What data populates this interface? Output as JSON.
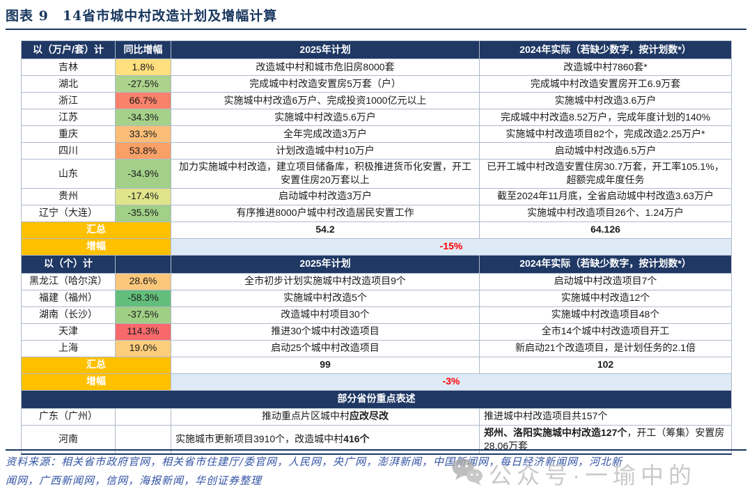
{
  "title": "图表 9　14省市城中村改造计划及增幅计算",
  "colors": {
    "header_navy": "#1F3864",
    "total_gold": "#FFC000",
    "growth_band_blue": "#DEEBF7",
    "growth_value_red": "#FF0000",
    "title_navy": "#17365D",
    "source_blue": "#3353A4"
  },
  "section1": {
    "header": [
      "以（万户/套）计",
      "同比增幅",
      "2025年计划",
      "2024年实际（若缺少数字，按计划数*）"
    ],
    "rows": [
      {
        "province": "吉林",
        "growth": "1.8%",
        "growth_color": "#FFDF7E",
        "plan2025": "改造城中村和城市危旧房8000套",
        "actual2024": "改造城中村7860套*"
      },
      {
        "province": "湖北",
        "growth": "-27.5%",
        "growth_color": "#ACD28C",
        "plan2025": "完成城中村改造安置房5万套（户）",
        "actual2024": "完成城中村改造安置房开工6.9万套"
      },
      {
        "province": "浙江",
        "growth": "66.7%",
        "growth_color": "#F8826A",
        "plan2025": "实施城中村改造6万户、完成投资1000亿元以上",
        "actual2024": "实施城中村改造3.6万户"
      },
      {
        "province": "江苏",
        "growth": "-34.3%",
        "growth_color": "#A5D18A",
        "plan2025": "实施城中村改造5.6万户",
        "actual2024": "完成城中村改造8.52万户，完成年度计划的140%"
      },
      {
        "province": "重庆",
        "growth": "33.3%",
        "growth_color": "#FBBD77",
        "plan2025": "全年完成改造3万户",
        "actual2024": "实施城中村改造项目82个，完成改造2.25万户*"
      },
      {
        "province": "四川",
        "growth": "53.8%",
        "growth_color": "#F9A066",
        "plan2025": "计划改造城中村10万户",
        "actual2024": "启动城中村改造6.5万户"
      },
      {
        "province": "山东",
        "growth": "-34.9%",
        "growth_color": "#A3D089",
        "plan2025": "加力实施城中村改造，建立项目储备库，积极推进货币化安置，开工安置住房20万套以上",
        "actual2024": "已开工城中村改造安置住房30.7万套，开工率105.1%，超额完成年度任务"
      },
      {
        "province": "贵州",
        "growth": "-17.4%",
        "growth_color": "#DFE48A",
        "plan2025": "启动城中村改造3万户",
        "actual2024": "截至2024年11月底，全省启动城中村改造3.63万户"
      },
      {
        "province": "辽宁（大连）",
        "growth": "-35.5%",
        "growth_color": "#A1D087",
        "plan2025": "有序推进8000户城中村改造居民安置工作",
        "actual2024": "实施城中村改造项目26个、1.24万户"
      }
    ],
    "total_label": "汇总",
    "total_plan": "54.2",
    "total_actual": "64.126",
    "growth_label": "增幅",
    "growth_value": "-15%"
  },
  "section2": {
    "header": [
      "以（个）计",
      "",
      "2025年计划",
      "2024年实际（若缺少数字，按计划数*）"
    ],
    "rows": [
      {
        "province": "黑龙江（哈尔滨）",
        "growth": "28.6%",
        "growth_color": "#FBC77B",
        "plan2025": "全市初步计划实施城中村改造项目9个",
        "actual2024": "启动城中村改造项目7个"
      },
      {
        "province": "福建（福州）",
        "growth": "-58.3%",
        "growth_color": "#63BE7B",
        "plan2025": "实施城中村改造5个",
        "actual2024": "实施城中村改造12个"
      },
      {
        "province": "湖南（长沙）",
        "growth": "-37.5%",
        "growth_color": "#9FCF85",
        "plan2025": "改造城中村项目30个",
        "actual2024": "实施城中村改造项目48个"
      },
      {
        "province": "天津",
        "growth": "114.3%",
        "growth_color": "#F8696B",
        "plan2025": "推进30个城中村改造项目",
        "actual2024": "全市14个城中村改造项目开工"
      },
      {
        "province": "上海",
        "growth": "19.0%",
        "growth_color": "#FCCD7D",
        "plan2025": "启动25个城中村改造项目",
        "actual2024": "新启动21个改造项目，是计划任务的2.1倍"
      }
    ],
    "total_label": "汇总",
    "total_plan": "99",
    "total_actual": "102",
    "growth_label": "增幅",
    "growth_value": "-3%"
  },
  "section3": {
    "header": "部分省份重点表述",
    "rows": [
      {
        "province": "广东（广州）",
        "plan_align": "center",
        "plan": [
          {
            "text": "推动重点片区城中村",
            "bold": false
          },
          {
            "text": "应改尽改",
            "bold": true
          }
        ],
        "actual_align": "left",
        "actual": [
          {
            "text": "推进城中村改造项目共157个",
            "bold": false
          }
        ]
      },
      {
        "province": "河南",
        "plan_align": "left",
        "plan": [
          {
            "text": "实施城市更新项目3910个，改造城中村",
            "bold": false
          },
          {
            "text": "416个",
            "bold": true
          }
        ],
        "actual_align": "left",
        "actual": [
          {
            "text": "郑州、洛阳实施城中村改造127个",
            "bold": true
          },
          {
            "text": "，开工（筹集）安置房28.06万套",
            "bold": false
          }
        ]
      }
    ]
  },
  "footer": {
    "line1": "资料来源：相关省市政府官网，相关省市住建厅/委官网，人民网，央广网，澎湃新闻，中国新闻网，每日经济新闻网，河北新",
    "line2": "闻网，广西新闻网，信网，海报新闻，华创证券整理"
  },
  "watermark": {
    "icon": "wechat-icon",
    "text": "公众号·一瑜中的"
  }
}
